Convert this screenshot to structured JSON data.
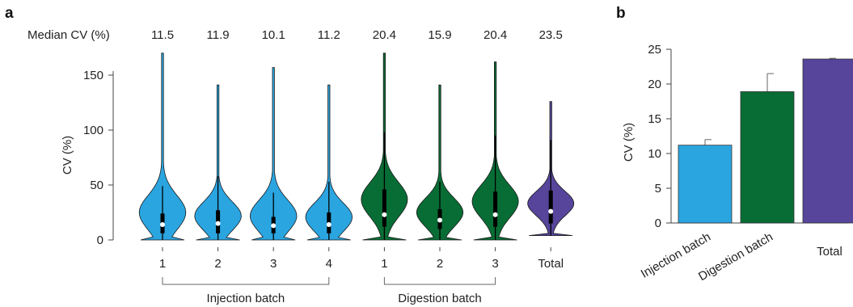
{
  "colors": {
    "injection": "#2aa5e0",
    "digestion": "#086d35",
    "total": "#56459b",
    "axis": "#444444",
    "text": "#222222"
  },
  "chart_data": [
    {
      "panel_label": "a",
      "type": "violin",
      "ylabel": "CV (%)",
      "ylim": [
        0,
        170
      ],
      "yticks": [
        0,
        50,
        100,
        150
      ],
      "median_cv_label": "Median CV (%)",
      "median_cv_values": [
        "11.5",
        "11.9",
        "10.1",
        "11.2",
        "20.4",
        "15.9",
        "20.4",
        "23.5"
      ],
      "categories": [
        "1",
        "2",
        "3",
        "4",
        "1",
        "2",
        "3",
        "Total"
      ],
      "groups": [
        {
          "label": "Injection batch",
          "members": [
            0,
            1,
            2,
            3
          ],
          "color_key": "injection"
        },
        {
          "label": "Digestion batch",
          "members": [
            4,
            5,
            6
          ],
          "color_key": "digestion"
        },
        {
          "label": "",
          "members": [
            7
          ],
          "color_key": "total"
        }
      ],
      "violins": [
        {
          "max": 170,
          "min": 0,
          "q1": 6,
          "median": 14,
          "q3": 24,
          "whisker_low": 0,
          "whisker_high": 49
        },
        {
          "max": 141,
          "min": 0,
          "q1": 6,
          "median": 15,
          "q3": 27,
          "whisker_low": 0,
          "whisker_high": 58
        },
        {
          "max": 157,
          "min": 0,
          "q1": 6,
          "median": 13,
          "q3": 21,
          "whisker_low": 0,
          "whisker_high": 43
        },
        {
          "max": 141,
          "min": 0,
          "q1": 6,
          "median": 14,
          "q3": 25,
          "whisker_low": 0,
          "whisker_high": 53
        },
        {
          "max": 170,
          "min": 0,
          "q1": 12,
          "median": 23,
          "q3": 46,
          "whisker_low": 0,
          "whisker_high": 98
        },
        {
          "max": 141,
          "min": 0,
          "q1": 10,
          "median": 18,
          "q3": 28,
          "whisker_low": 0,
          "whisker_high": 53
        },
        {
          "max": 162,
          "min": 0,
          "q1": 12,
          "median": 23,
          "q3": 44,
          "whisker_low": 0,
          "whisker_high": 95
        },
        {
          "max": 126,
          "min": 4,
          "q1": 15,
          "median": 26,
          "q3": 45,
          "whisker_low": 4,
          "whisker_high": 91
        }
      ]
    },
    {
      "panel_label": "b",
      "type": "bar",
      "ylabel": "CV (%)",
      "ylim": [
        0,
        25
      ],
      "yticks": [
        0,
        5,
        10,
        15,
        20,
        25
      ],
      "categories": [
        "Injection batch",
        "Digestion batch",
        "Total"
      ],
      "values": [
        11.2,
        18.9,
        23.6
      ],
      "error": [
        0.8,
        2.6,
        0.1
      ],
      "color_keys": [
        "injection",
        "digestion",
        "total"
      ]
    }
  ]
}
